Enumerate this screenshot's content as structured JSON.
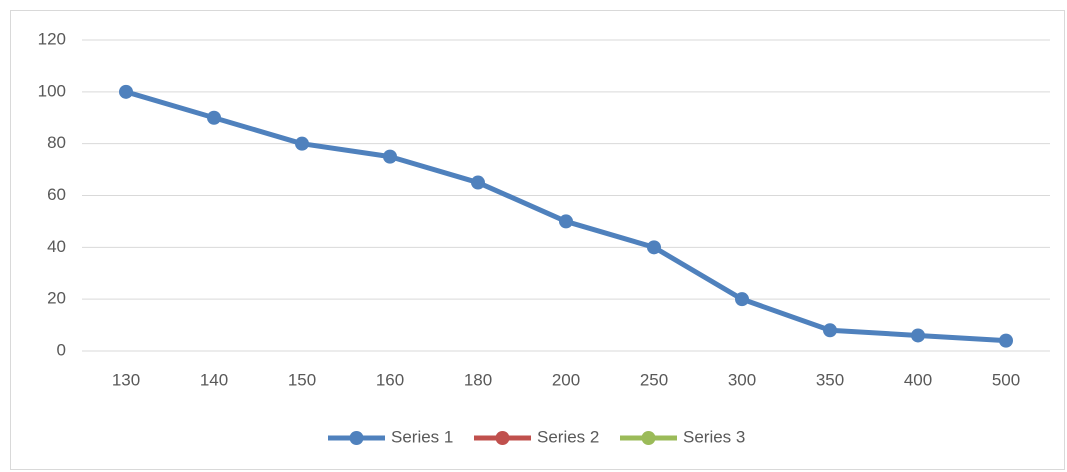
{
  "chart_data": {
    "type": "line",
    "categories": [
      "130",
      "140",
      "150",
      "160",
      "180",
      "200",
      "250",
      "300",
      "350",
      "400",
      "500"
    ],
    "series": [
      {
        "name": "Series 1",
        "color": "#4f81bd",
        "values": [
          100,
          90,
          80,
          75,
          65,
          50,
          40,
          20,
          8,
          6,
          4
        ]
      },
      {
        "name": "Series 2",
        "color": "#c0504d",
        "values": [
          null,
          null,
          null,
          null,
          null,
          null,
          null,
          null,
          null,
          null,
          null
        ]
      },
      {
        "name": "Series 3",
        "color": "#9bbb59",
        "values": [
          null,
          null,
          null,
          null,
          null,
          null,
          null,
          null,
          null,
          null,
          null
        ]
      }
    ],
    "ylim": [
      0,
      120
    ],
    "yticks": [
      0,
      20,
      40,
      60,
      80,
      100,
      120
    ],
    "grid": true,
    "legend": "bottom"
  }
}
